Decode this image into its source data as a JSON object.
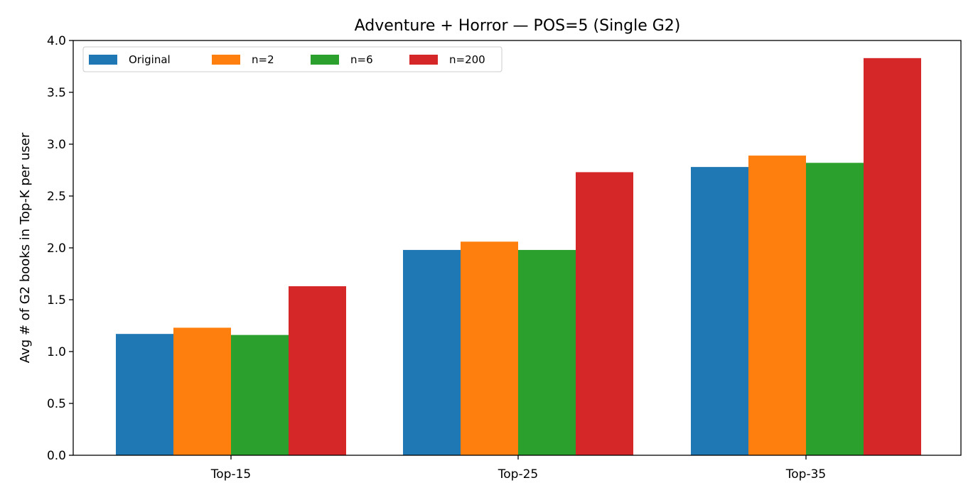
{
  "chart_data": {
    "type": "bar",
    "title": "Adventure + Horror — POS=5 (Single G2)",
    "xlabel": "",
    "ylabel": "Avg # of G2 books in Top-K per user",
    "categories": [
      "Top-15",
      "Top-25",
      "Top-35"
    ],
    "ylim": [
      0,
      4.0
    ],
    "yticks": [
      "0.0",
      "0.5",
      "1.0",
      "1.5",
      "2.0",
      "2.5",
      "3.0",
      "3.5",
      "4.0"
    ],
    "grid": false,
    "legend_position": "top-left",
    "series": [
      {
        "name": "Original",
        "color": "#1f77b4",
        "values": [
          1.17,
          1.98,
          2.78
        ]
      },
      {
        "name": "n=2",
        "color": "#ff7f0e",
        "values": [
          1.23,
          2.06,
          2.89
        ]
      },
      {
        "name": "n=6",
        "color": "#2ca02c",
        "values": [
          1.16,
          1.98,
          2.82
        ]
      },
      {
        "name": "n=200",
        "color": "#d62728",
        "values": [
          1.63,
          2.73,
          3.83
        ]
      }
    ]
  }
}
